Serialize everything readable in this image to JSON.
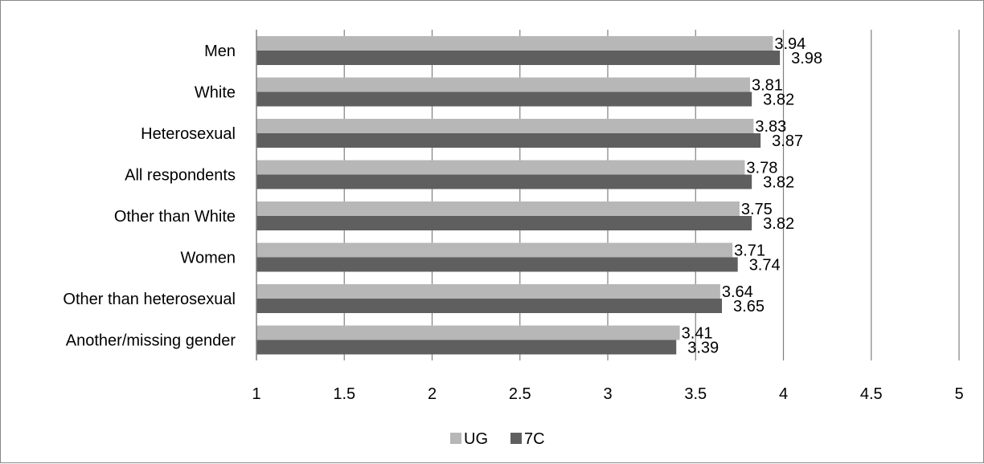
{
  "chart_data": {
    "type": "bar",
    "orientation": "horizontal",
    "categories": [
      "Men",
      "White",
      "Heterosexual",
      "All respondents",
      "Other than White",
      "Women",
      "Other than heterosexual",
      "Another/missing gender"
    ],
    "series": [
      {
        "name": "UG",
        "color": "#b7b7b7",
        "values": [
          3.94,
          3.81,
          3.83,
          3.78,
          3.75,
          3.71,
          3.64,
          3.41
        ],
        "labels": [
          "3.94",
          "3.81",
          "3.83",
          "3.78",
          "3.75",
          "3.71",
          "3.64",
          "3.41"
        ]
      },
      {
        "name": "7C",
        "color": "#5f5f5f",
        "values": [
          3.98,
          3.82,
          3.87,
          3.82,
          3.82,
          3.74,
          3.65,
          3.39
        ],
        "labels": [
          "3.98",
          "3.82",
          "3.87",
          "3.82",
          "3.82",
          "3.74",
          "3.65",
          "3.39"
        ]
      }
    ],
    "xlim": [
      1,
      5
    ],
    "xticks": [
      "1",
      "1.5",
      "2",
      "2.5",
      "3",
      "3.5",
      "4",
      "4.5",
      "5"
    ],
    "title": "",
    "xlabel": "",
    "ylabel": "",
    "grid": "vertical major gridlines",
    "legend_position": "bottom"
  }
}
